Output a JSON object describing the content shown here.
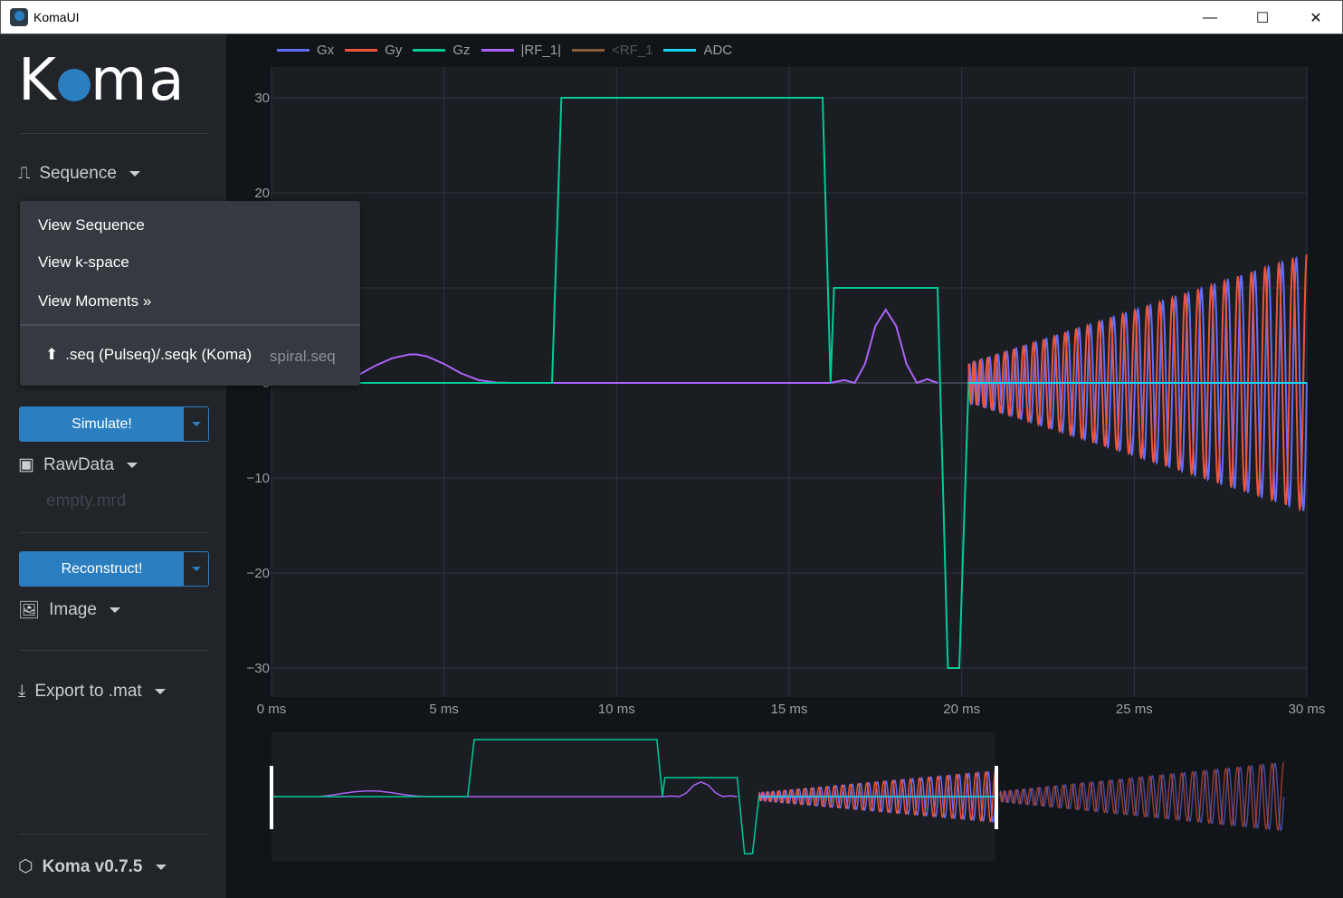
{
  "window": {
    "title": "KomaUI",
    "minimize": "—",
    "maximize": "☐",
    "close": "✕"
  },
  "sidebar": {
    "logo": "Koma",
    "sequence": {
      "label": "Sequence",
      "icon": "pulse-sequence-icon"
    },
    "simulate": {
      "label": "Simulate!"
    },
    "rawdata": {
      "label": "RawData",
      "file": "empty.mrd",
      "icon": "rawdata-monitor-icon"
    },
    "reconstruct": {
      "label": "Reconstruct!"
    },
    "image": {
      "label": "Image",
      "icon": "image-icon"
    },
    "export": {
      "label": "Export to .mat",
      "icon": "download-icon"
    },
    "version": {
      "label": "Koma v0.7.5",
      "icon": "box-icon"
    }
  },
  "sequence_menu": {
    "items": [
      "View Sequence",
      "View k-space",
      "View Moments »"
    ],
    "upload_label": ".seq (Pulseq)/.seqk (Koma)",
    "upload_icon": "upload-icon",
    "current_file": "spiral.seq"
  },
  "colors": {
    "Gx": "#636efa",
    "Gy": "#ef553b",
    "Gz": "#00cc96",
    "RF_abs": "#ab63fa",
    "RF_phase": "#8c5a3c",
    "ADC": "#19d3f3",
    "accent": "#2b7fc0"
  },
  "chart_data": {
    "type": "line",
    "xlabel": "",
    "ylabel": "",
    "xlim": [
      0,
      30
    ],
    "ylim": [
      -33,
      33
    ],
    "x_ticks": [
      "0 ms",
      "5 ms",
      "10 ms",
      "15 ms",
      "20 ms",
      "25 ms",
      "30 ms"
    ],
    "y_ticks": [
      "30",
      "20",
      "10",
      "0",
      "−10",
      "−20",
      "−30"
    ],
    "grid": true,
    "legend": "top",
    "series": [
      {
        "name": "Gx",
        "kind": "spiral",
        "t_start": 20.2,
        "t_end": 30,
        "amp_start": 2,
        "amp_end": 13.5,
        "cycles": 30,
        "phase": 0
      },
      {
        "name": "Gy",
        "kind": "spiral",
        "t_start": 20.2,
        "t_end": 30,
        "amp_start": 2,
        "amp_end": 13.5,
        "cycles": 30,
        "phase": 90
      },
      {
        "name": "Gz",
        "x": [
          0,
          8.13,
          8.4,
          15.97,
          16.2,
          16.3,
          19.3,
          19.6,
          19.93,
          20.2,
          30
        ],
        "y": [
          0,
          0,
          30,
          30,
          0,
          10,
          10,
          -30,
          -30,
          0,
          0
        ]
      },
      {
        "name": "|RF_1|",
        "x": [
          2.0,
          2.5,
          3.0,
          3.5,
          4.0,
          4.2,
          4.5,
          5.0,
          5.5,
          6.0,
          6.5,
          7.0,
          8.0,
          16.2,
          16.6,
          16.9,
          17.2,
          17.5,
          17.8,
          18.1,
          18.4,
          18.7,
          19.0,
          19.3
        ],
        "y": [
          0,
          0.8,
          1.8,
          2.6,
          3.0,
          3.0,
          2.8,
          2.0,
          1.0,
          0.3,
          0.05,
          0,
          0,
          0,
          0.3,
          0,
          2.0,
          6.0,
          7.7,
          6.0,
          2.0,
          0,
          0.4,
          0
        ]
      },
      {
        "name": "<RF_1",
        "visible": false
      },
      {
        "name": "ADC",
        "x": [
          20.2,
          30
        ],
        "y": [
          0,
          0
        ]
      }
    ]
  }
}
